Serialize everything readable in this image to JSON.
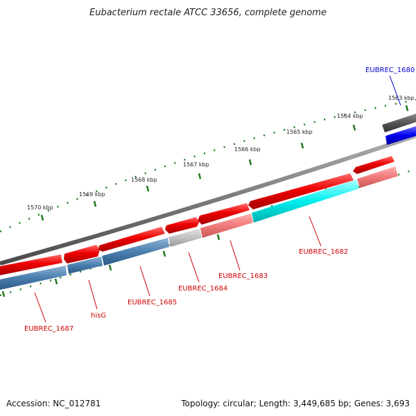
{
  "title": "Eubacterium rectale ATCC 33656, complete genome",
  "footer": {
    "accession": "Accession: NC_012781",
    "summary": "Topology: circular; Length: 3,449,685 bp; Genes: 3,693"
  },
  "colors": {
    "backbone": "#7a7a7a",
    "ticks": "#1e7a1e",
    "forward_gene": "#ee0000",
    "reverse_gene": "#4a7faf",
    "highlight_gene": "#0000ee",
    "label_red": "#cc0000",
    "label_blue": "#0000cc"
  },
  "ticks": [
    {
      "label": "1563 kbp"
    },
    {
      "label": "1564 kbp"
    },
    {
      "label": "1565 kbp"
    },
    {
      "label": "1566 kbp"
    },
    {
      "label": "1567 kbp"
    },
    {
      "label": "1568 kbp"
    },
    {
      "label": "1569 kbp"
    },
    {
      "label": "1570 kbp"
    }
  ],
  "genes": [
    {
      "label": "EUBREC_1680",
      "color": "blue"
    },
    {
      "label": "EUBREC_1682",
      "color": "red"
    },
    {
      "label": "EUBREC_1683",
      "color": "red"
    },
    {
      "label": "EUBREC_1684",
      "color": "red"
    },
    {
      "label": "EUBREC_1685",
      "color": "red"
    },
    {
      "label": "hisG",
      "color": "red"
    },
    {
      "label": "EUBREC_1687",
      "color": "red"
    }
  ]
}
